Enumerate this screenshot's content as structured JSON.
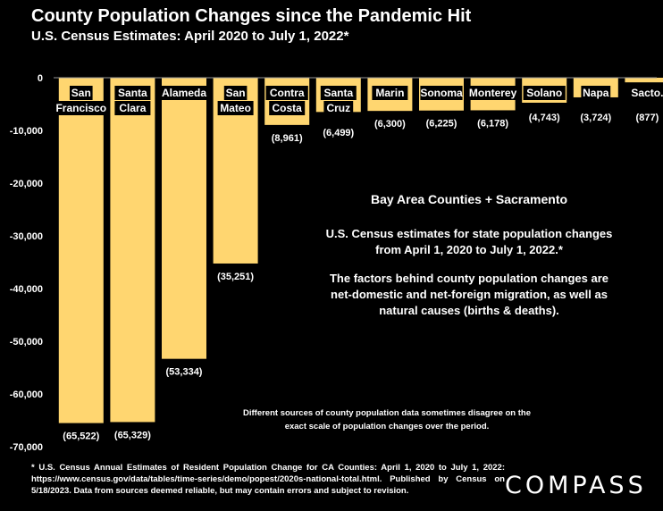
{
  "header": {
    "title": "County Population Changes since the Pandemic Hit",
    "subtitle": "U.S. Census Estimates: April 2020 to July 1, 2022*"
  },
  "info": {
    "heading": "Bay Area Counties + Sacramento",
    "p1": "U.S. Census estimates for state population changes from April 1, 2020 to July 1, 2022.*",
    "p2": "The factors behind county population changes are net-domestic and net-foreign migration, as well as natural causes (births & deaths)."
  },
  "sources_note": "Different sources of county population data sometimes disagree on the exact scale of population changes over the period.",
  "footnote": "* U.S. Census Annual Estimates of Resident Population Change for CA Counties: April 1, 2020 to July 1, 2022: https://www.census.gov/data/tables/time-series/demo/popest/2020s-national-total.html. Published by Census on 5/18/2023. Data from sources deemed reliable, but may contain errors and subject to revision.",
  "logo": "COMPASS",
  "colors": {
    "bar": "#FFD670",
    "background": "#000000",
    "text": "#FFFFFF"
  },
  "chart_data": {
    "type": "bar",
    "title": "County Population Changes since the Pandemic Hit",
    "subtitle": "U.S. Census Estimates: April 2020 to July 1, 2022*",
    "categories": [
      [
        "San",
        "Francisco"
      ],
      [
        "Santa",
        "Clara"
      ],
      [
        "Alameda"
      ],
      [
        "San",
        "Mateo"
      ],
      [
        "Contra",
        "Costa"
      ],
      [
        "Santa",
        "Cruz"
      ],
      [
        "Marin"
      ],
      [
        "Sonoma"
      ],
      [
        "Monterey"
      ],
      [
        "Solano"
      ],
      [
        "Napa"
      ],
      [
        "Sacto."
      ]
    ],
    "values": [
      -65522,
      -65329,
      -53334,
      -35251,
      -8961,
      -6499,
      -6300,
      -6225,
      -6178,
      -4743,
      -3724,
      -877
    ],
    "value_labels": [
      "(65,522)",
      "(65,329)",
      "(53,334)",
      "(35,251)",
      "(8,961)",
      "(6,499)",
      "(6,300)",
      "(6,225)",
      "(6,178)",
      "(4,743)",
      "(3,724)",
      "(877)"
    ],
    "y_ticks": [
      0,
      -10000,
      -20000,
      -30000,
      -40000,
      -50000,
      -60000,
      -70000
    ],
    "y_tick_labels": [
      "0",
      "-10,000",
      "-20,000",
      "-30,000",
      "-40,000",
      "-50,000",
      "-60,000",
      "-70,000"
    ],
    "ylim": [
      -70000,
      0
    ],
    "grid": false,
    "legend": "none"
  }
}
